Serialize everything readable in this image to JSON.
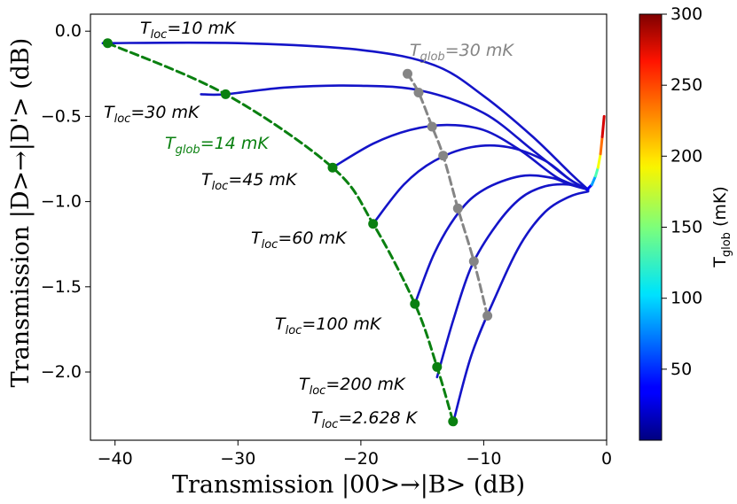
{
  "chart_data": {
    "type": "line",
    "xlabel": "Transmission |00>→|B> (dB)",
    "ylabel": "Transmission |D>→|D'> (dB)",
    "xlim": [
      -42,
      0
    ],
    "ylim": [
      -2.4,
      0.1
    ],
    "x_ticks": [
      -40,
      -30,
      -20,
      -10,
      0
    ],
    "x_tick_labels": [
      "−40",
      "−30",
      "−20",
      "−10",
      "0"
    ],
    "y_ticks": [
      0.0,
      -0.5,
      -1.0,
      -1.5,
      -2.0
    ],
    "y_tick_labels": [
      "0.0",
      "−0.5",
      "−1.0",
      "−1.5",
      "−2.0"
    ],
    "series": [
      {
        "name": "T_loc=10 mK",
        "x": [
          -41,
          -30,
          -20,
          -14,
          -10,
          -6,
          -3,
          -1.5
        ],
        "y": [
          -0.07,
          -0.07,
          -0.11,
          -0.2,
          -0.38,
          -0.62,
          -0.83,
          -0.93
        ]
      },
      {
        "name": "T_loc=30 mK",
        "x": [
          -33,
          -31,
          -26,
          -20,
          -15,
          -10,
          -6,
          -3,
          -1.5
        ],
        "y": [
          -0.37,
          -0.37,
          -0.33,
          -0.32,
          -0.35,
          -0.48,
          -0.7,
          -0.87,
          -0.93
        ]
      },
      {
        "name": "T_loc=45 mK",
        "x": [
          -22.3,
          -19,
          -16,
          -13,
          -10,
          -7,
          -4,
          -1.5
        ],
        "y": [
          -0.8,
          -0.66,
          -0.58,
          -0.55,
          -0.58,
          -0.7,
          -0.86,
          -0.93
        ]
      },
      {
        "name": "T_loc=60 mK",
        "x": [
          -19,
          -16.5,
          -14,
          -11,
          -8,
          -5,
          -3,
          -1.5
        ],
        "y": [
          -1.13,
          -0.9,
          -0.76,
          -0.68,
          -0.68,
          -0.76,
          -0.87,
          -0.93
        ]
      },
      {
        "name": "T_loc=100 mK",
        "x": [
          -15.6,
          -14,
          -12,
          -10,
          -7,
          -4.5,
          -3,
          -1.5
        ],
        "y": [
          -1.6,
          -1.3,
          -1.06,
          -0.93,
          -0.85,
          -0.86,
          -0.9,
          -0.93
        ]
      },
      {
        "name": "T_loc=200 mK",
        "x": [
          -13.8,
          -12.5,
          -11,
          -9,
          -7,
          -5,
          -3,
          -1.5
        ],
        "y": [
          -2.03,
          -1.7,
          -1.38,
          -1.14,
          -0.98,
          -0.91,
          -0.9,
          -0.93
        ]
      },
      {
        "name": "T_loc=2.628 K",
        "x": [
          -12.5,
          -11,
          -9,
          -7,
          -5,
          -3,
          -1.5
        ],
        "y": [
          -2.3,
          -1.9,
          -1.55,
          -1.25,
          -1.06,
          -0.97,
          -0.94
        ]
      }
    ],
    "tail": {
      "x": [
        -1.6,
        -1.2,
        -0.9,
        -0.7,
        -0.5,
        -0.35,
        -0.2
      ],
      "y": [
        -0.93,
        -0.9,
        -0.85,
        -0.8,
        -0.72,
        -0.62,
        -0.5
      ],
      "tglob": [
        10,
        60,
        110,
        160,
        210,
        250,
        300
      ]
    },
    "t_glob_14mK": {
      "label": "T_glob=14 mK",
      "x": [
        -40.6,
        -31,
        -22.3,
        -19,
        -15.6,
        -13.8,
        -12.5
      ],
      "y": [
        -0.07,
        -0.37,
        -0.8,
        -1.13,
        -1.6,
        -1.97,
        -2.29
      ]
    },
    "t_glob_30mK": {
      "label": "T_glob=30 mK",
      "x": [
        -16.2,
        -15.3,
        -14.2,
        -13.3,
        -12.1,
        -10.8,
        -9.7
      ],
      "y": [
        -0.25,
        -0.36,
        -0.56,
        -0.73,
        -1.04,
        -1.35,
        -1.67
      ]
    },
    "annotations": [
      {
        "base": "T",
        "sub": "loc",
        "rest": "=10 mK",
        "color": "#000000"
      },
      {
        "base": "T",
        "sub": "loc",
        "rest": "=30 mK",
        "color": "#000000"
      },
      {
        "base": "T",
        "sub": "loc",
        "rest": "=45 mK",
        "color": "#000000"
      },
      {
        "base": "T",
        "sub": "loc",
        "rest": "=60 mK",
        "color": "#000000"
      },
      {
        "base": "T",
        "sub": "loc",
        "rest": "=100 mK",
        "color": "#000000"
      },
      {
        "base": "T",
        "sub": "loc",
        "rest": "=200 mK",
        "color": "#000000"
      },
      {
        "base": "T",
        "sub": "loc",
        "rest": "=2.628 K",
        "color": "#000000"
      },
      {
        "base": "T",
        "sub": "glob",
        "rest": "=14 mK",
        "color": "#0a8010"
      },
      {
        "base": "T",
        "sub": "glob",
        "rest": "=30 mK",
        "color": "#858585"
      }
    ],
    "colorbar": {
      "min": 0,
      "max": 300,
      "ticks": [
        50,
        100,
        150,
        200,
        250,
        300
      ],
      "tick_labels": [
        "50",
        "100",
        "150",
        "200",
        "250",
        "300"
      ],
      "label_base": "T",
      "label_sub": "glob",
      "label_rest": " (mK)",
      "colormap": "jet"
    }
  }
}
